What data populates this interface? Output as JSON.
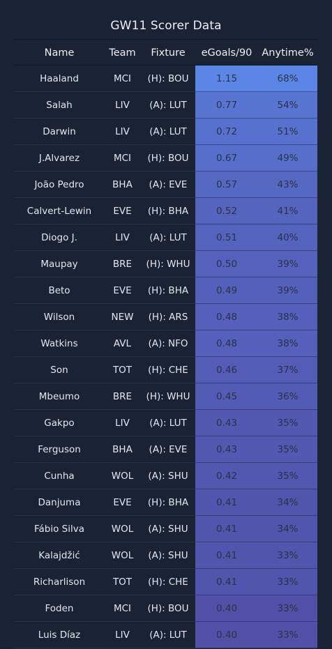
{
  "chart_data": {
    "type": "table",
    "title": "GW11 Scorer Data",
    "columns": [
      "Name",
      "Team",
      "Fixture",
      "eGoals/90",
      "Anytime%"
    ],
    "rows": [
      {
        "name": "Haaland",
        "team": "MCI",
        "fixture": "(H): BOU",
        "egoals": "1.15",
        "anytime": "68%"
      },
      {
        "name": "Salah",
        "team": "LIV",
        "fixture": "(A): LUT",
        "egoals": "0.77",
        "anytime": "54%"
      },
      {
        "name": "Darwin",
        "team": "LIV",
        "fixture": "(A): LUT",
        "egoals": "0.72",
        "anytime": "51%"
      },
      {
        "name": "J.Alvarez",
        "team": "MCI",
        "fixture": "(H): BOU",
        "egoals": "0.67",
        "anytime": "49%"
      },
      {
        "name": "João Pedro",
        "team": "BHA",
        "fixture": "(A): EVE",
        "egoals": "0.57",
        "anytime": "43%"
      },
      {
        "name": "Calvert-Lewin",
        "team": "EVE",
        "fixture": "(H): BHA",
        "egoals": "0.52",
        "anytime": "41%"
      },
      {
        "name": "Diogo J.",
        "team": "LIV",
        "fixture": "(A): LUT",
        "egoals": "0.51",
        "anytime": "40%"
      },
      {
        "name": "Maupay",
        "team": "BRE",
        "fixture": "(H): WHU",
        "egoals": "0.50",
        "anytime": "39%"
      },
      {
        "name": "Beto",
        "team": "EVE",
        "fixture": "(H): BHA",
        "egoals": "0.49",
        "anytime": "39%"
      },
      {
        "name": "Wilson",
        "team": "NEW",
        "fixture": "(H): ARS",
        "egoals": "0.48",
        "anytime": "38%"
      },
      {
        "name": "Watkins",
        "team": "AVL",
        "fixture": "(A): NFO",
        "egoals": "0.48",
        "anytime": "38%"
      },
      {
        "name": "Son",
        "team": "TOT",
        "fixture": "(H): CHE",
        "egoals": "0.46",
        "anytime": "37%"
      },
      {
        "name": "Mbeumo",
        "team": "BRE",
        "fixture": "(H): WHU",
        "egoals": "0.45",
        "anytime": "36%"
      },
      {
        "name": "Gakpo",
        "team": "LIV",
        "fixture": "(A): LUT",
        "egoals": "0.43",
        "anytime": "35%"
      },
      {
        "name": "Ferguson",
        "team": "BHA",
        "fixture": "(A): EVE",
        "egoals": "0.43",
        "anytime": "35%"
      },
      {
        "name": "Cunha",
        "team": "WOL",
        "fixture": "(A): SHU",
        "egoals": "0.42",
        "anytime": "35%"
      },
      {
        "name": "Danjuma",
        "team": "EVE",
        "fixture": "(H): BHA",
        "egoals": "0.41",
        "anytime": "34%"
      },
      {
        "name": "Fábio Silva",
        "team": "WOL",
        "fixture": "(A): SHU",
        "egoals": "0.41",
        "anytime": "34%"
      },
      {
        "name": "Kalajdžić",
        "team": "WOL",
        "fixture": "(A): SHU",
        "egoals": "0.41",
        "anytime": "33%"
      },
      {
        "name": "Richarlison",
        "team": "TOT",
        "fixture": "(H): CHE",
        "egoals": "0.41",
        "anytime": "33%"
      },
      {
        "name": "Foden",
        "team": "MCI",
        "fixture": "(H): BOU",
        "egoals": "0.40",
        "anytime": "33%"
      },
      {
        "name": "Luis Díaz",
        "team": "LIV",
        "fixture": "(A): LUT",
        "egoals": "0.40",
        "anytime": "33%"
      }
    ],
    "heat_scale": {
      "low_color": "#5150a6",
      "high_color": "#5b86e6"
    },
    "grid": true,
    "legend": "none"
  }
}
